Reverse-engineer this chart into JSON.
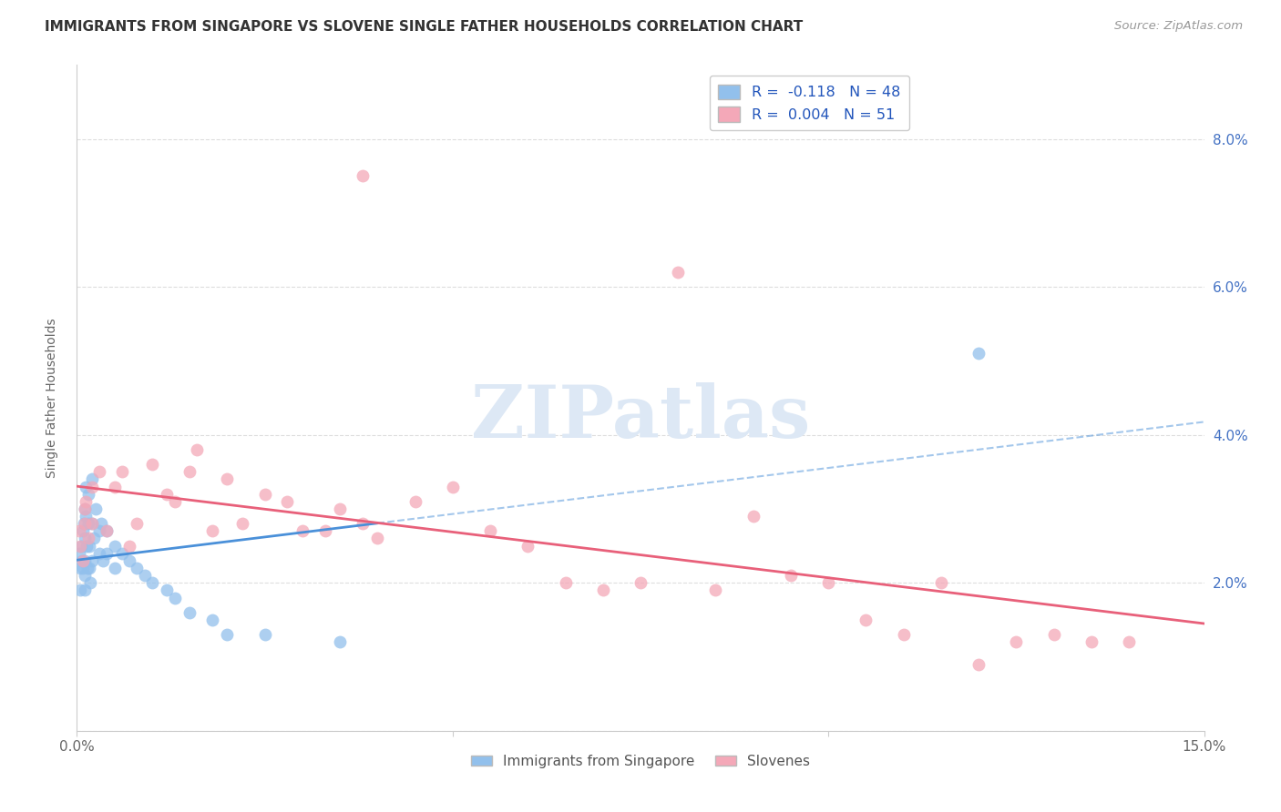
{
  "title": "IMMIGRANTS FROM SINGAPORE VS SLOVENE SINGLE FATHER HOUSEHOLDS CORRELATION CHART",
  "source": "Source: ZipAtlas.com",
  "ylabel": "Single Father Households",
  "xlim": [
    0.0,
    0.15
  ],
  "ylim": [
    0.0,
    0.09
  ],
  "xticks": [
    0.0,
    0.05,
    0.1,
    0.15
  ],
  "xtick_labels": [
    "0.0%",
    "",
    "",
    "15.0%"
  ],
  "yticks": [
    0.0,
    0.02,
    0.04,
    0.06,
    0.08
  ],
  "ytick_labels_right": [
    "",
    "2.0%",
    "4.0%",
    "6.0%",
    "8.0%"
  ],
  "legend_blue_label": "R =  -0.118   N = 48",
  "legend_pink_label": "R =  0.004   N = 51",
  "series_label_blue": "Immigrants from Singapore",
  "series_label_pink": "Slovenes",
  "blue_color": "#92C0EC",
  "pink_color": "#F4A8B8",
  "blue_line_color": "#4A90D9",
  "pink_line_color": "#E8607A",
  "watermark_text": "ZIPatlas",
  "grid_color": "#DDDDDD",
  "blue_x": [
    0.0003,
    0.0005,
    0.0005,
    0.0006,
    0.0007,
    0.0008,
    0.0008,
    0.0009,
    0.001,
    0.001,
    0.001,
    0.001,
    0.001,
    0.0012,
    0.0012,
    0.0013,
    0.0014,
    0.0015,
    0.0015,
    0.0016,
    0.0017,
    0.0018,
    0.002,
    0.002,
    0.002,
    0.0022,
    0.0025,
    0.003,
    0.003,
    0.0032,
    0.0035,
    0.004,
    0.004,
    0.005,
    0.005,
    0.006,
    0.007,
    0.008,
    0.009,
    0.01,
    0.012,
    0.013,
    0.015,
    0.018,
    0.02,
    0.025,
    0.035,
    0.12
  ],
  "blue_y": [
    0.024,
    0.022,
    0.019,
    0.025,
    0.023,
    0.027,
    0.022,
    0.028,
    0.03,
    0.026,
    0.023,
    0.021,
    0.019,
    0.033,
    0.029,
    0.025,
    0.022,
    0.032,
    0.028,
    0.025,
    0.022,
    0.02,
    0.034,
    0.028,
    0.023,
    0.026,
    0.03,
    0.027,
    0.024,
    0.028,
    0.023,
    0.027,
    0.024,
    0.025,
    0.022,
    0.024,
    0.023,
    0.022,
    0.021,
    0.02,
    0.019,
    0.018,
    0.016,
    0.015,
    0.013,
    0.013,
    0.012,
    0.051
  ],
  "pink_x": [
    0.0003,
    0.0005,
    0.0008,
    0.001,
    0.001,
    0.0012,
    0.0015,
    0.002,
    0.002,
    0.003,
    0.004,
    0.005,
    0.006,
    0.007,
    0.008,
    0.01,
    0.012,
    0.013,
    0.015,
    0.016,
    0.018,
    0.02,
    0.022,
    0.025,
    0.028,
    0.03,
    0.033,
    0.035,
    0.038,
    0.04,
    0.045,
    0.05,
    0.055,
    0.06,
    0.065,
    0.07,
    0.075,
    0.08,
    0.085,
    0.09,
    0.095,
    0.1,
    0.105,
    0.11,
    0.115,
    0.12,
    0.125,
    0.13,
    0.135,
    0.14,
    0.038
  ],
  "pink_y": [
    0.027,
    0.025,
    0.023,
    0.03,
    0.028,
    0.031,
    0.026,
    0.033,
    0.028,
    0.035,
    0.027,
    0.033,
    0.035,
    0.025,
    0.028,
    0.036,
    0.032,
    0.031,
    0.035,
    0.038,
    0.027,
    0.034,
    0.028,
    0.032,
    0.031,
    0.027,
    0.027,
    0.03,
    0.028,
    0.026,
    0.031,
    0.033,
    0.027,
    0.025,
    0.02,
    0.019,
    0.02,
    0.062,
    0.019,
    0.029,
    0.021,
    0.02,
    0.015,
    0.013,
    0.02,
    0.009,
    0.012,
    0.013,
    0.012,
    0.012,
    0.075
  ]
}
